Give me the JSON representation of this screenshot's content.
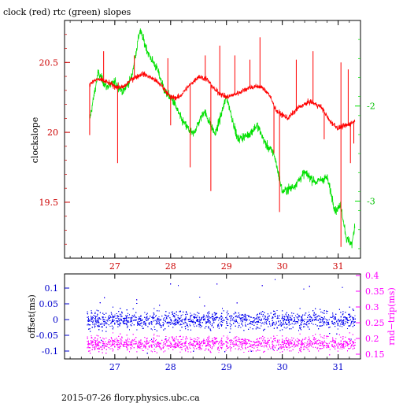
{
  "header": {
    "title": "clock (red) rtc (green) slopes"
  },
  "footer": {
    "text": "2015-07-26 flory.physics.ubc.ca"
  },
  "colors": {
    "red": "#ff0000",
    "green": "#00e000",
    "blue": "#0000ee",
    "magenta": "#ff00ff",
    "axis": "#000000"
  },
  "chart_data": [
    {
      "type": "line",
      "title": "clock (red) rtc (green) slopes",
      "ylabel": "clockslope",
      "xlim": [
        26.1,
        31.4
      ],
      "ylim_left": [
        19.1,
        20.8
      ],
      "ylim_right": [
        -3.6,
        -1.1
      ],
      "x_ticks": [
        27,
        28,
        29,
        30,
        31
      ],
      "y_ticks_left": [
        "19.5",
        "20",
        "20.5"
      ],
      "y_ticks_right": [
        "-3",
        "-2"
      ],
      "series": [
        {
          "color": "red",
          "axis": "left",
          "x": [
            26.55,
            26.7,
            26.85,
            27.0,
            27.15,
            27.3,
            27.5,
            27.7,
            27.85,
            28.0,
            28.15,
            28.3,
            28.5,
            28.65,
            28.8,
            29.0,
            29.2,
            29.4,
            29.6,
            29.75,
            29.9,
            30.1,
            30.3,
            30.5,
            30.7,
            30.85,
            31.0,
            31.15,
            31.3
          ],
          "y": [
            20.35,
            20.38,
            20.36,
            20.33,
            20.32,
            20.38,
            20.42,
            20.38,
            20.33,
            20.25,
            20.25,
            20.32,
            20.4,
            20.38,
            20.3,
            20.25,
            20.28,
            20.32,
            20.33,
            20.28,
            20.15,
            20.1,
            20.18,
            20.22,
            20.18,
            20.08,
            20.03,
            20.05,
            20.08
          ]
        },
        {
          "color": "green",
          "axis": "right",
          "x": [
            26.55,
            26.7,
            26.85,
            27.0,
            27.15,
            27.3,
            27.45,
            27.6,
            27.75,
            27.9,
            28.05,
            28.2,
            28.4,
            28.6,
            28.8,
            29.0,
            29.2,
            29.4,
            29.55,
            29.7,
            29.85,
            30.0,
            30.2,
            30.4,
            30.6,
            30.8,
            30.95,
            31.05,
            31.15,
            31.25,
            31.3
          ],
          "y": [
            -2.15,
            -1.65,
            -1.8,
            -1.75,
            -1.85,
            -1.7,
            -1.2,
            -1.45,
            -1.6,
            -1.85,
            -1.95,
            -2.15,
            -2.3,
            -2.05,
            -2.3,
            -1.9,
            -2.35,
            -2.3,
            -2.2,
            -2.4,
            -2.5,
            -2.9,
            -2.85,
            -2.7,
            -2.8,
            -2.75,
            -3.1,
            -3.05,
            -3.4,
            -3.45,
            -3.25
          ]
        }
      ],
      "spikes_down": [
        {
          "x": 26.55,
          "y": 19.98
        },
        {
          "x": 27.05,
          "y": 19.78
        },
        {
          "x": 28.0,
          "y": 20.05
        },
        {
          "x": 28.35,
          "y": 19.75
        },
        {
          "x": 28.72,
          "y": 19.58
        },
        {
          "x": 29.85,
          "y": 19.85
        },
        {
          "x": 29.95,
          "y": 19.43
        },
        {
          "x": 30.75,
          "y": 19.95
        },
        {
          "x": 31.05,
          "y": 19.18
        },
        {
          "x": 31.22,
          "y": 19.78
        },
        {
          "x": 31.28,
          "y": 19.92
        }
      ],
      "spikes_up": [
        {
          "x": 26.8,
          "y": 20.58
        },
        {
          "x": 27.35,
          "y": 20.55
        },
        {
          "x": 27.95,
          "y": 20.53
        },
        {
          "x": 28.62,
          "y": 20.55
        },
        {
          "x": 28.88,
          "y": 20.62
        },
        {
          "x": 29.15,
          "y": 20.55
        },
        {
          "x": 29.42,
          "y": 20.52
        },
        {
          "x": 29.6,
          "y": 20.68
        },
        {
          "x": 30.25,
          "y": 20.52
        },
        {
          "x": 30.55,
          "y": 20.58
        },
        {
          "x": 31.05,
          "y": 20.5
        },
        {
          "x": 31.18,
          "y": 20.45
        }
      ]
    },
    {
      "type": "scatter",
      "ylabel": "offset(ms)",
      "ylabel_right": "rnd−trip(ms)",
      "xlim": [
        26.1,
        31.4
      ],
      "ylim_left": [
        -0.125,
        0.145
      ],
      "ylim_right": [
        0.135,
        0.405
      ],
      "x_ticks": [
        27,
        28,
        29,
        30,
        31
      ],
      "y_ticks_left": [
        "-0.1",
        "-0.05",
        "0",
        "0.05",
        "0.1"
      ],
      "y_ticks_right": [
        "0.15",
        "0.2",
        "0.25",
        "0.3",
        "0.35",
        "0.4"
      ],
      "series": [
        {
          "color": "blue",
          "axis": "left",
          "x_range": [
            26.5,
            31.3
          ],
          "center": 0.0,
          "spread": 0.03,
          "sparse_max": 0.13,
          "sparse_min": -0.11
        },
        {
          "color": "magenta",
          "axis": "right",
          "x_range": [
            26.5,
            31.3
          ],
          "center": 0.185,
          "spread": 0.025,
          "sparse_max": 0.39,
          "sparse_min": 0.15
        }
      ]
    }
  ]
}
